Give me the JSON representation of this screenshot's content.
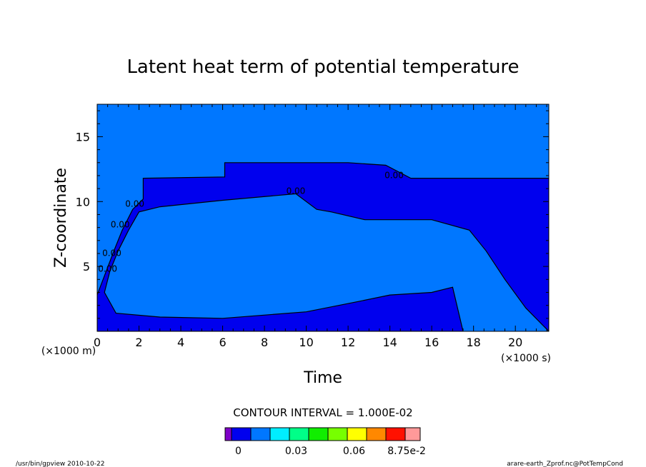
{
  "chart_data": {
    "type": "heatmap",
    "title": "Latent heat term of potential temperature",
    "xlabel": "Time",
    "ylabel": "Z-coordinate",
    "x_unit": "(×1000 s)",
    "y_unit": "(×1000 m)",
    "xlim": [
      0,
      21.6
    ],
    "ylim": [
      0,
      17.5
    ],
    "x_ticks": [
      0,
      2,
      4,
      6,
      8,
      10,
      12,
      14,
      16,
      18,
      20
    ],
    "y_ticks": [
      5,
      10,
      15
    ],
    "x_tick_labels": [
      "0",
      "2",
      "4",
      "6",
      "8",
      "10",
      "12",
      "14",
      "16",
      "18",
      "20"
    ],
    "y_tick_labels": [
      "5",
      "10",
      "15"
    ],
    "contour_labels": [
      {
        "text": "0.00",
        "x": 9.5,
        "y": 10.6
      },
      {
        "text": "0.00",
        "x": 14.2,
        "y": 11.8
      },
      {
        "text": "0.00",
        "x": 1.8,
        "y": 9.6
      },
      {
        "text": "0.00",
        "x": 1.1,
        "y": 8.0
      },
      {
        "text": "0.00",
        "x": 0.7,
        "y": 5.8
      },
      {
        "text": "0.00",
        "x": 0.5,
        "y": 4.6
      }
    ],
    "contour_interval_text": "CONTOUR INTERVAL = 1.000E-02",
    "colorbar": {
      "colors": [
        "#7f00c8",
        "#0000ee",
        "#0077ff",
        "#00eeff",
        "#00ff88",
        "#11ee00",
        "#77ff00",
        "#ffff00",
        "#ff8800",
        "#ff1100",
        "#ff9999"
      ],
      "tick_labels": [
        {
          "text": "0",
          "slot": 1.35
        },
        {
          "text": "0.03",
          "slot": 4.35
        },
        {
          "text": "0.06",
          "slot": 7.35
        },
        {
          "text": "8.75e-2",
          "slot": 10.1
        }
      ]
    },
    "background_color": "#0077ff",
    "band_color": "#0000ee",
    "grid": false,
    "legend": "bottom"
  },
  "footer": {
    "left": "/usr/bin/gpview  2010-10-22",
    "right": "arare-earth_Zprof.nc@PotTempCond"
  }
}
